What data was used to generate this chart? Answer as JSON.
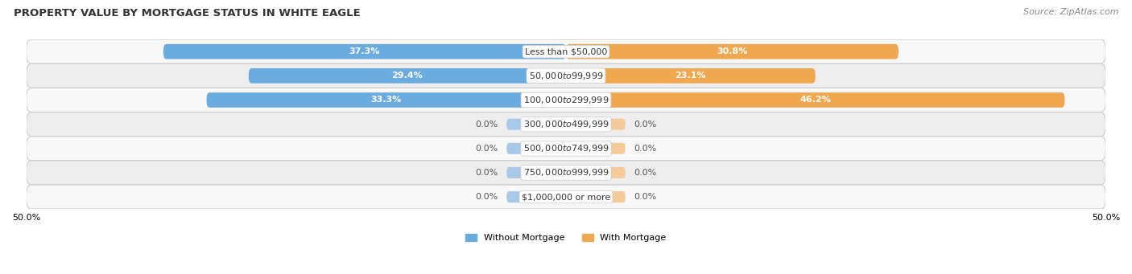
{
  "title": "PROPERTY VALUE BY MORTGAGE STATUS IN WHITE EAGLE",
  "source": "Source: ZipAtlas.com",
  "categories": [
    "Less than $50,000",
    "$50,000 to $99,999",
    "$100,000 to $299,999",
    "$300,000 to $499,999",
    "$500,000 to $749,999",
    "$750,000 to $999,999",
    "$1,000,000 or more"
  ],
  "without_mortgage": [
    37.3,
    29.4,
    33.3,
    0.0,
    0.0,
    0.0,
    0.0
  ],
  "with_mortgage": [
    30.8,
    23.1,
    46.2,
    0.0,
    0.0,
    0.0,
    0.0
  ],
  "color_without": "#6aabe0",
  "color_with": "#f0a850",
  "color_without_zero": "#a8c8e8",
  "color_with_zero": "#f5cc99",
  "row_colors": [
    "#f8f8f8",
    "#eeeeee"
  ],
  "xlim": [
    -50,
    50
  ],
  "xtick_labels": [
    "50.0%",
    "50.0%"
  ],
  "bar_height": 0.62,
  "zero_bar_size": 5.5,
  "title_fontsize": 9.5,
  "source_fontsize": 8,
  "label_fontsize": 8,
  "category_fontsize": 8,
  "legend_fontsize": 8,
  "figsize": [
    14.06,
    3.41
  ]
}
